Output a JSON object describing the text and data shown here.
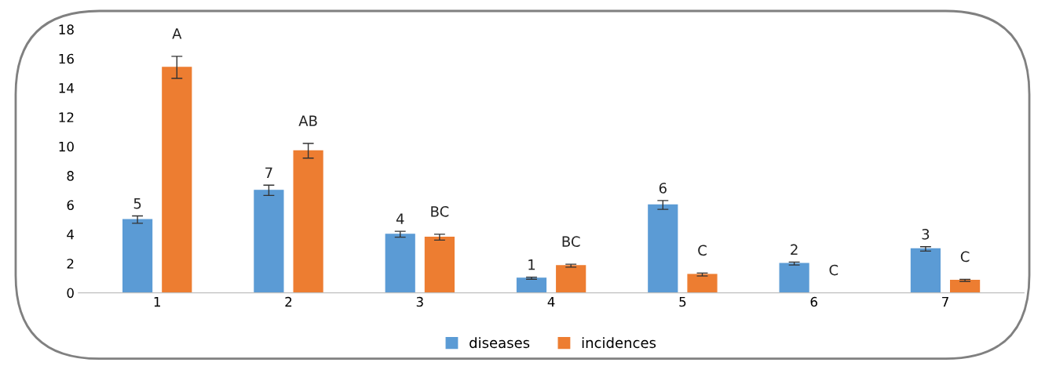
{
  "chart_data": {
    "type": "bar",
    "categories": [
      "1",
      "2",
      "3",
      "4",
      "5",
      "6",
      "7"
    ],
    "series": [
      {
        "name": "diseases",
        "color": "#5b9bd5",
        "values": [
          5,
          7,
          4,
          1,
          6,
          2,
          3
        ],
        "errors": [
          0.25,
          0.35,
          0.2,
          0.07,
          0.3,
          0.1,
          0.15
        ],
        "value_labels": [
          "5",
          "7",
          "4",
          "1",
          "6",
          "2",
          "3"
        ]
      },
      {
        "name": "incidences",
        "color": "#ed7d31",
        "values": [
          15.4,
          9.7,
          3.8,
          1.85,
          1.25,
          0,
          0.85
        ],
        "errors": [
          0.75,
          0.5,
          0.2,
          0.1,
          0.1,
          null,
          0.07
        ],
        "value_labels": [
          "A",
          "AB",
          "BC",
          "BC",
          "C",
          "C",
          "C"
        ]
      }
    ],
    "ylim": [
      0,
      18
    ],
    "yticks": [
      0,
      2,
      4,
      6,
      8,
      10,
      12,
      14,
      16,
      18
    ],
    "grid": false,
    "legend": "bottom"
  }
}
